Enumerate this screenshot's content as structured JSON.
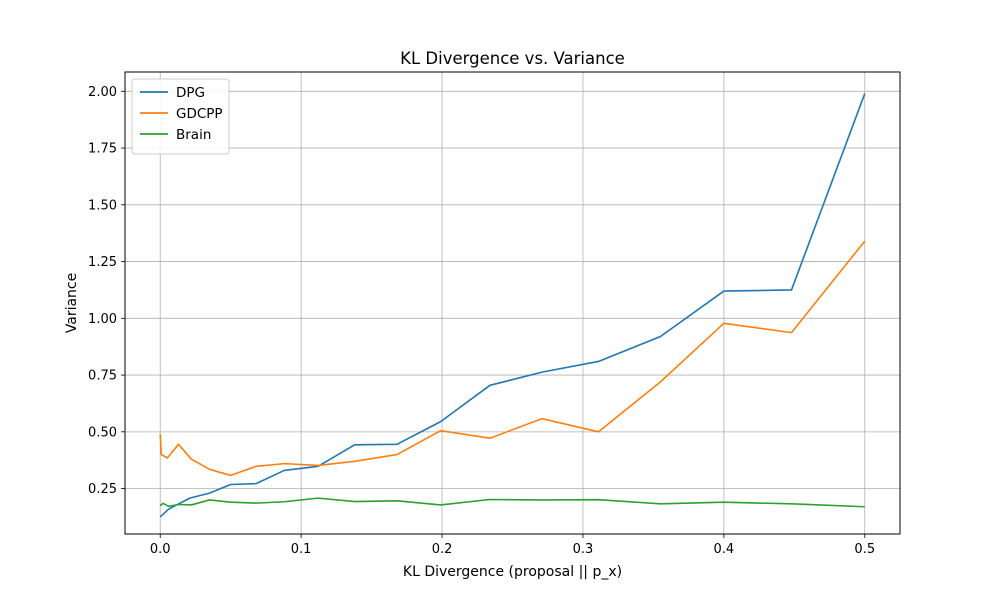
{
  "chart_data": {
    "type": "line",
    "title": "KL Divergence vs. Variance",
    "xlabel": "KL Divergence (proposal || p_x)",
    "ylabel": "Variance",
    "xlim": [
      -0.025,
      0.525
    ],
    "ylim": [
      0.05,
      2.085
    ],
    "xticks": [
      0.0,
      0.1,
      0.2,
      0.3,
      0.4,
      0.5
    ],
    "xtick_labels": [
      "0.0",
      "0.1",
      "0.2",
      "0.3",
      "0.4",
      "0.5"
    ],
    "yticks": [
      0.25,
      0.5,
      0.75,
      1.0,
      1.25,
      1.5,
      1.75,
      2.0
    ],
    "ytick_labels": [
      "0.25",
      "0.50",
      "0.75",
      "1.00",
      "1.25",
      "1.50",
      "1.75",
      "2.00"
    ],
    "grid": true,
    "legend_position": "top-left",
    "series": [
      {
        "name": "DPG",
        "color": "#1f77b4",
        "x": [
          0.0,
          0.006,
          0.021,
          0.035,
          0.05,
          0.068,
          0.088,
          0.112,
          0.138,
          0.168,
          0.199,
          0.234,
          0.271,
          0.311,
          0.355,
          0.4,
          0.448,
          0.5
        ],
        "y": [
          0.125,
          0.16,
          0.208,
          0.23,
          0.268,
          0.272,
          0.33,
          0.348,
          0.443,
          0.445,
          0.545,
          0.705,
          0.763,
          0.81,
          0.92,
          1.12,
          1.125,
          1.99
        ]
      },
      {
        "name": "GDCPP",
        "color": "#ff7f0e",
        "x": [
          0.0,
          0.0008,
          0.005,
          0.013,
          0.022,
          0.035,
          0.05,
          0.068,
          0.088,
          0.112,
          0.138,
          0.168,
          0.199,
          0.234,
          0.271,
          0.311,
          0.355,
          0.4,
          0.448,
          0.5
        ],
        "y": [
          0.49,
          0.4,
          0.385,
          0.445,
          0.38,
          0.335,
          0.308,
          0.348,
          0.36,
          0.352,
          0.37,
          0.4,
          0.505,
          0.472,
          0.558,
          0.5,
          0.72,
          0.978,
          0.937,
          1.34
        ]
      },
      {
        "name": "Brain",
        "color": "#2ca02c",
        "x": [
          0.0,
          0.002,
          0.006,
          0.013,
          0.022,
          0.035,
          0.05,
          0.068,
          0.088,
          0.112,
          0.138,
          0.168,
          0.199,
          0.234,
          0.271,
          0.311,
          0.355,
          0.4,
          0.448,
          0.5
        ],
        "y": [
          0.175,
          0.185,
          0.172,
          0.18,
          0.178,
          0.2,
          0.19,
          0.186,
          0.192,
          0.208,
          0.193,
          0.196,
          0.178,
          0.202,
          0.2,
          0.201,
          0.183,
          0.19,
          0.183,
          0.17
        ]
      }
    ]
  }
}
